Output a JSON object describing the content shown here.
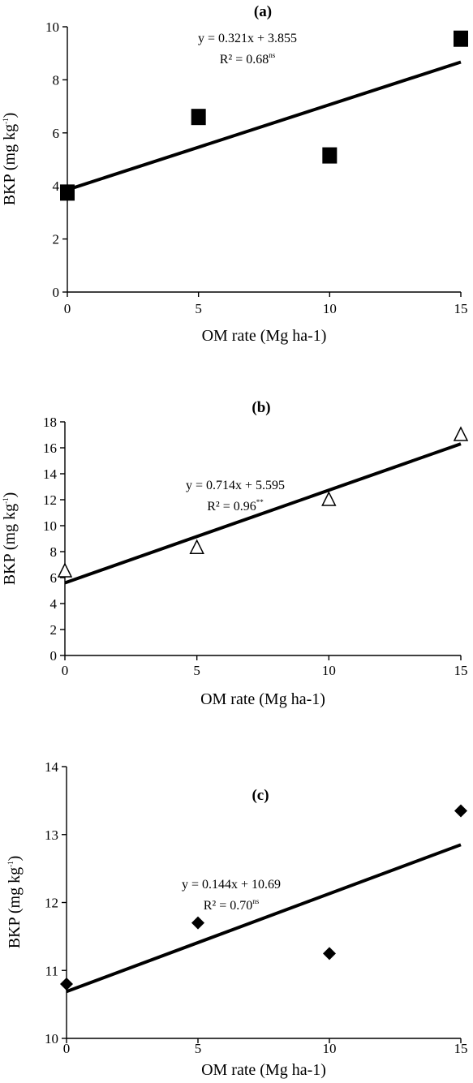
{
  "chart_data": [
    {
      "type": "scatter",
      "panel_label": "(a)",
      "x": [
        0,
        5,
        10,
        15
      ],
      "y": [
        3.75,
        6.6,
        5.15,
        9.55
      ],
      "marker": "square",
      "xlabel": "OM rate (Mg ha-1)",
      "ylabel_main": "BKP (mg kg",
      "ylabel_sup": "-1",
      "ylabel_end": ")",
      "xlim": [
        0,
        15
      ],
      "ylim": [
        0,
        10
      ],
      "xticks": [
        0,
        5,
        10,
        15
      ],
      "yticks": [
        0,
        2,
        4,
        6,
        8,
        10
      ],
      "trendline": {
        "slope": 0.321,
        "intercept": 3.855
      },
      "equation": "y = 0.321x + 3.855",
      "r2_main": "R² = 0.68",
      "r2_sup": "ns"
    },
    {
      "type": "scatter",
      "panel_label": "(b)",
      "x": [
        0,
        5,
        10,
        15
      ],
      "y": [
        6.5,
        8.3,
        12.0,
        17.0
      ],
      "marker": "triangle-open",
      "xlabel": "OM rate (Mg ha-1)",
      "ylabel_main": "BKP (mg kg",
      "ylabel_sup": "-1",
      "ylabel_end": ")",
      "xlim": [
        0,
        15
      ],
      "ylim": [
        0,
        18
      ],
      "xticks": [
        0,
        5,
        10,
        15
      ],
      "yticks": [
        0,
        2,
        4,
        6,
        8,
        10,
        12,
        14,
        16,
        18
      ],
      "trendline": {
        "slope": 0.714,
        "intercept": 5.595
      },
      "equation": "y = 0.714x + 5.595",
      "r2_main": "R² = 0.96",
      "r2_sup": "**"
    },
    {
      "type": "scatter",
      "panel_label": "(c)",
      "x": [
        0,
        5,
        10,
        15
      ],
      "y": [
        10.8,
        11.7,
        11.25,
        13.35
      ],
      "marker": "diamond",
      "xlabel": "OM rate (Mg ha-1)",
      "ylabel_main": "BKP (mg kg",
      "ylabel_sup": "-1",
      "ylabel_end": ")",
      "xlim": [
        0,
        15
      ],
      "ylim": [
        10,
        14
      ],
      "xticks": [
        0,
        5,
        10,
        15
      ],
      "yticks": [
        10,
        11,
        12,
        13,
        14
      ],
      "trendline": {
        "slope": 0.144,
        "intercept": 10.69
      },
      "equation": "y = 0.144x + 10.69",
      "r2_main": "R² = 0.70",
      "r2_sup": "ns"
    }
  ]
}
